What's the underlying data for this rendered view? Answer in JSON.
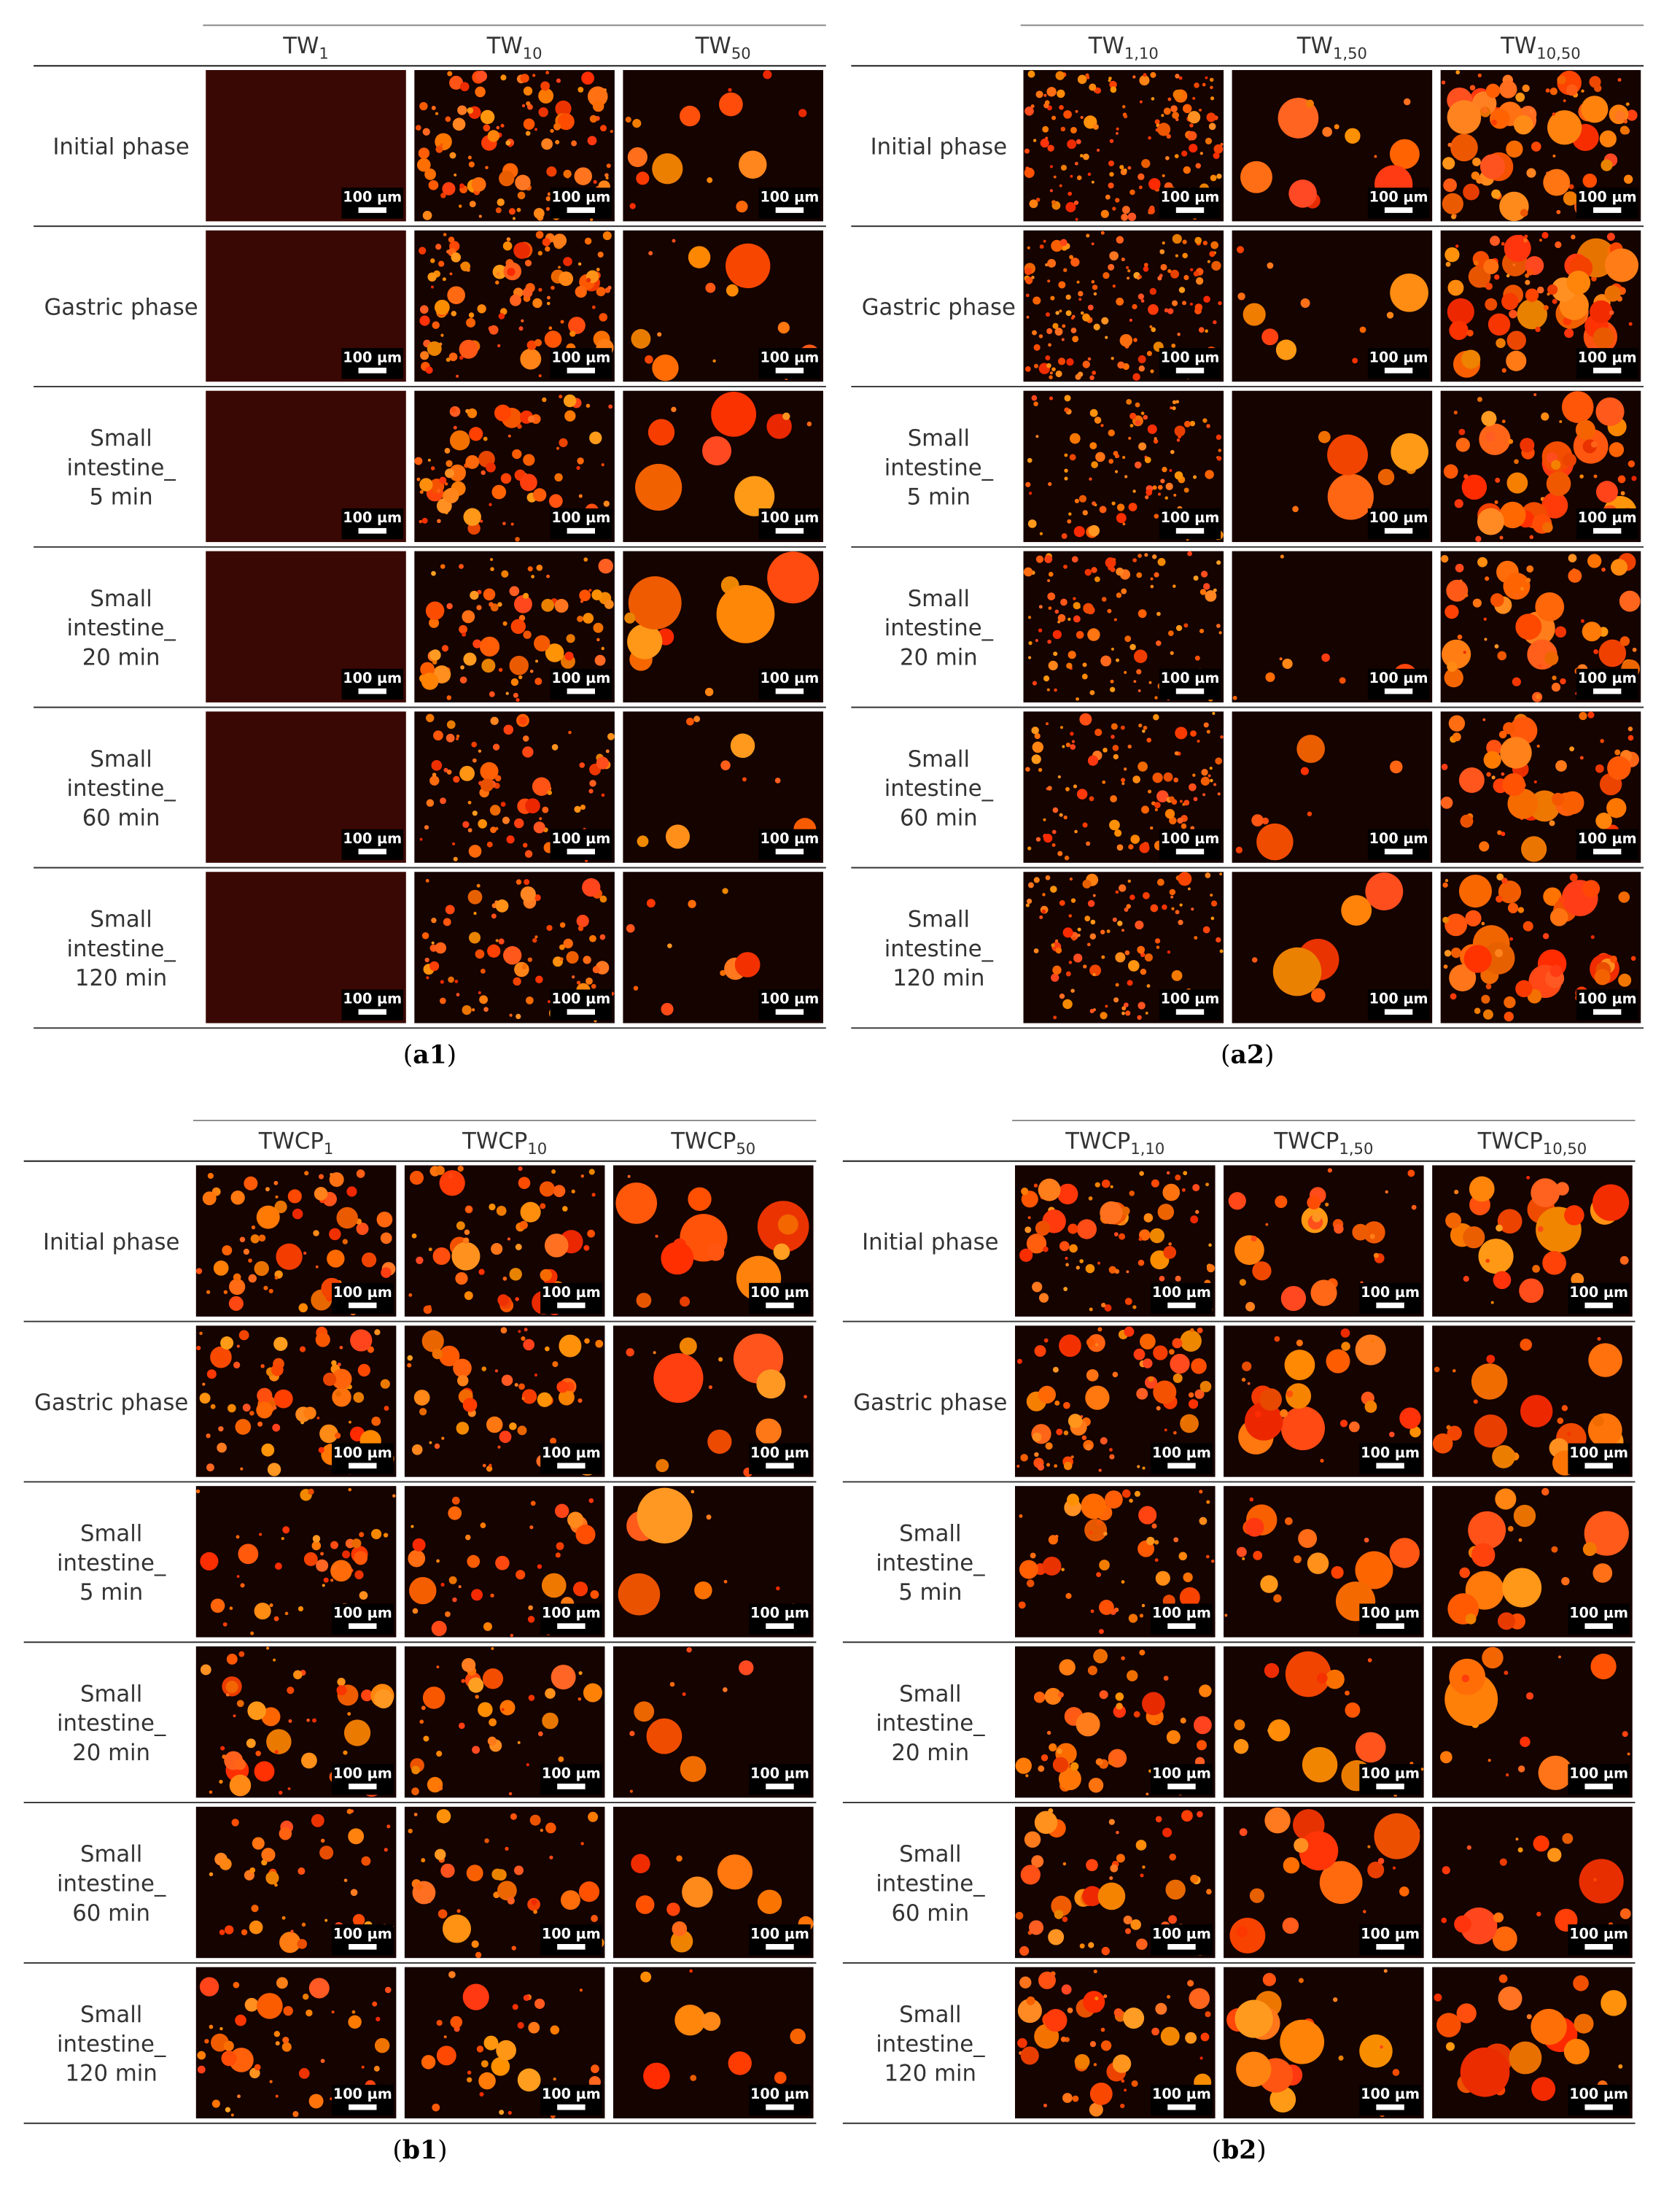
{
  "panels": [
    {
      "columns": [
        {
          "name": "TW",
          "subscript": "1"
        },
        {
          "name": "TW",
          "subscript": "10"
        },
        {
          "name": "TW",
          "subscript": "50"
        }
      ],
      "rows": [
        [
          "Initial phase"
        ],
        [
          "Gastric phase"
        ],
        [
          "Small",
          "intestine_",
          "5 min"
        ],
        [
          "Small",
          "intestine_",
          "20 min"
        ],
        [
          "Small",
          "intestine_",
          "60 min"
        ],
        [
          "Small",
          "intestine_",
          "120 min"
        ]
      ],
      "scale_bar": "100 µm",
      "caption": [
        "(",
        "a1",
        ")"
      ]
    },
    {
      "columns": [
        {
          "name": "TW",
          "subscript": "1,10"
        },
        {
          "name": "TW",
          "subscript": "1,50"
        },
        {
          "name": "TW",
          "subscript": "10,50"
        }
      ],
      "rows": [
        [
          "Initial phase"
        ],
        [
          "Gastric phase"
        ],
        [
          "Small",
          "intestine_",
          "5 min"
        ],
        [
          "Small",
          "intestine_",
          "20 min"
        ],
        [
          "Small",
          "intestine_",
          "60 min"
        ],
        [
          "Small",
          "intestine_",
          "120 min"
        ]
      ],
      "scale_bar": "100 µm",
      "caption": [
        "(",
        "a2",
        ")"
      ]
    },
    {
      "columns": [
        {
          "name": "TWCP",
          "subscript": "1"
        },
        {
          "name": "TWCP",
          "subscript": "10"
        },
        {
          "name": "TWCP",
          "subscript": "50"
        }
      ],
      "rows": [
        [
          "Initial phase"
        ],
        [
          "Gastric phase"
        ],
        [
          "Small",
          "intestine_",
          "5 min"
        ],
        [
          "Small",
          "intestine_",
          "20 min"
        ],
        [
          "Small",
          "intestine_",
          "60 min"
        ],
        [
          "Small",
          "intestine_",
          "120 min"
        ]
      ],
      "scale_bar": "100 µm",
      "caption": [
        "(",
        "b1",
        ")"
      ]
    },
    {
      "columns": [
        {
          "name": "TWCP",
          "subscript": "1,10"
        },
        {
          "name": "TWCP",
          "subscript": "1,50"
        },
        {
          "name": "TWCP",
          "subscript": "10,50"
        }
      ],
      "rows": [
        [
          "Initial phase"
        ],
        [
          "Gastric phase"
        ],
        [
          "Small",
          "intestine_",
          "5 min"
        ],
        [
          "Small",
          "intestine_",
          "20 min"
        ],
        [
          "Small",
          "intestine_",
          "60 min"
        ],
        [
          "Small",
          "intestine_",
          "120 min"
        ]
      ],
      "scale_bar": "100 µm",
      "caption": [
        "(",
        "b2",
        ")"
      ]
    }
  ]
}
